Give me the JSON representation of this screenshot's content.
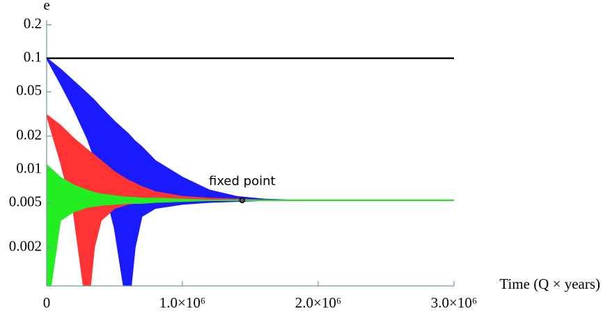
{
  "chart_data": {
    "type": "band",
    "y_label": "e",
    "x_label": "Time (Q × years)",
    "ylog": true,
    "xlim": [
      0,
      3000000
    ],
    "ylim": [
      0.0009,
      0.22
    ],
    "xticks": [
      0,
      {
        "value": 1000000,
        "label": "1.0×10⁶"
      },
      {
        "value": 2000000,
        "label": "2.0×10⁶"
      },
      {
        "value": 3000000,
        "label": "3.0×10⁶"
      }
    ],
    "yticks": [
      0.2,
      0.1,
      0.05,
      0.02,
      0.01,
      0.005,
      0.002
    ],
    "reference_line": {
      "value": 0.1,
      "color": "#000000"
    },
    "x": [
      0,
      100000,
      200000,
      300000,
      350000,
      400000,
      500000,
      600000,
      650000,
      700000,
      800000,
      1000000,
      1200000,
      1400000,
      1600000,
      1800000,
      2000000,
      3000000
    ],
    "series": [
      {
        "color": "#1a1aff",
        "upper": [
          0.1,
          0.08,
          0.062,
          0.048,
          0.042,
          0.036,
          0.027,
          0.021,
          0.018,
          0.016,
          0.012,
          0.0085,
          0.0065,
          0.0057,
          0.0054,
          0.0053,
          0.0053,
          0.0053
        ],
        "lower": [
          0.1,
          0.06,
          0.035,
          0.019,
          0.013,
          0.009,
          0.003,
          0.0005,
          0.002,
          0.0038,
          0.0045,
          0.0049,
          0.0051,
          0.0052,
          0.0053,
          0.0053,
          0.0053,
          0.0053
        ]
      },
      {
        "color": "#ff3333",
        "upper": [
          0.031,
          0.025,
          0.019,
          0.015,
          0.0135,
          0.012,
          0.0095,
          0.008,
          0.0075,
          0.007,
          0.0063,
          0.0057,
          0.0055,
          0.0054,
          0.0053,
          0.0053,
          0.0053,
          0.0053
        ],
        "lower": [
          0.031,
          0.012,
          0.004,
          0.0005,
          0.002,
          0.0035,
          0.0045,
          0.0049,
          0.005,
          0.005,
          0.0051,
          0.0052,
          0.0053,
          0.0053,
          0.0053,
          0.0053,
          0.0053,
          0.0053
        ]
      },
      {
        "color": "#22ee22",
        "upper": [
          0.011,
          0.0085,
          0.0072,
          0.0065,
          0.0062,
          0.006,
          0.0058,
          0.0056,
          0.0056,
          0.0055,
          0.0055,
          0.0054,
          0.0053,
          0.0053,
          0.0053,
          0.0053,
          0.0053,
          0.0053
        ],
        "lower": [
          0.0005,
          0.0035,
          0.0042,
          0.0046,
          0.0047,
          0.0048,
          0.0049,
          0.005,
          0.005,
          0.005,
          0.0051,
          0.0052,
          0.0053,
          0.0053,
          0.0053,
          0.0053,
          0.0053,
          0.0053
        ]
      }
    ],
    "annotation": {
      "text": "fixed point",
      "x": 1440000,
      "y": 0.0053
    }
  }
}
